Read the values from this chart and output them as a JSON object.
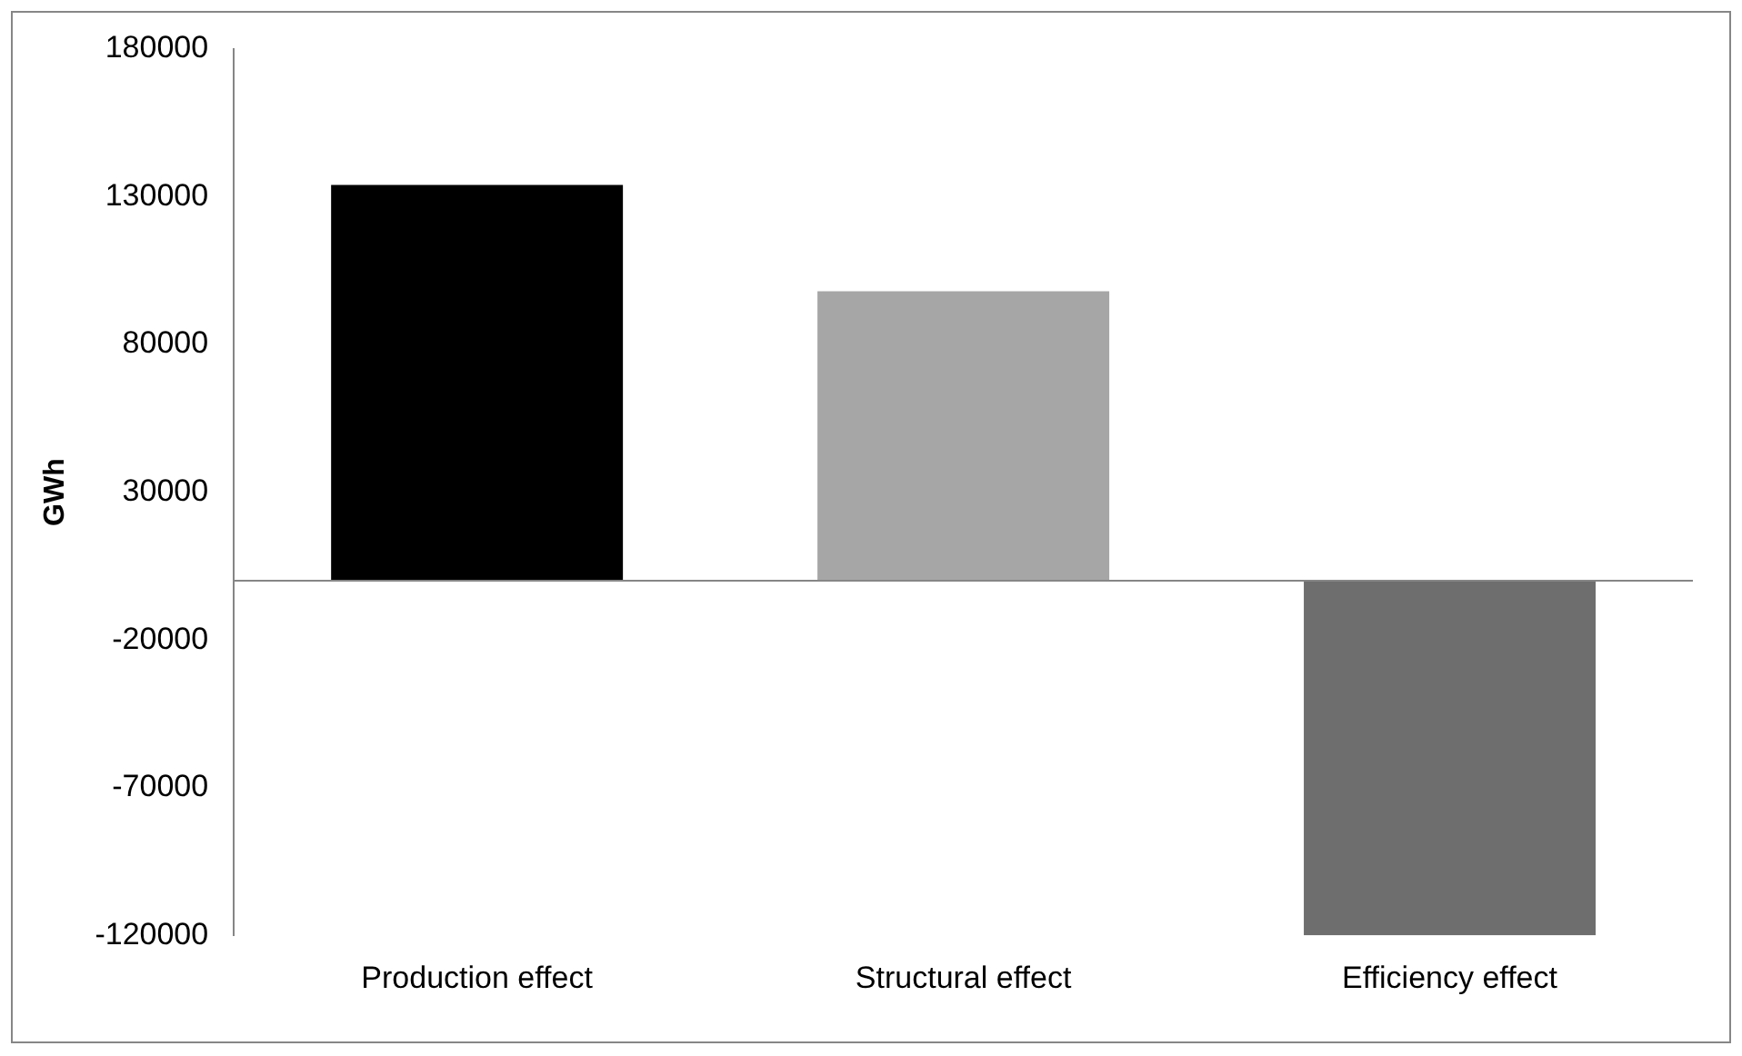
{
  "chart_data": {
    "type": "bar",
    "ylabel": "GWh",
    "categories": [
      "Production effect",
      "Structural effect",
      "Efficiency effect"
    ],
    "values": [
      134000,
      98000,
      -120000
    ],
    "colors": [
      "#000000",
      "#a6a6a6",
      "#6e6e6e"
    ],
    "ylim": [
      -120000,
      180000
    ],
    "yticks": [
      180000,
      130000,
      80000,
      30000,
      -20000,
      -70000,
      -120000
    ],
    "grid": false,
    "legend": false
  }
}
